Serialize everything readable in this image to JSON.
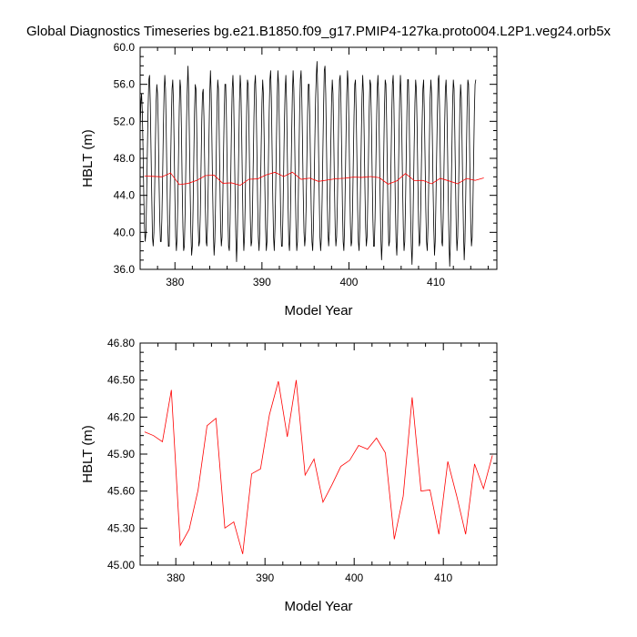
{
  "title": "Global Diagnostics Timeseries bg.e21.B1850.f09_g17.PMIP4-127ka.proto004.L2P1.veg24.orb5x",
  "chart_data": [
    {
      "type": "line",
      "title": "Global Diagnostics Timeseries bg.e21.B1850.f09_g17.PMIP4-127ka.proto004.L2P1.veg24.orb5x",
      "xlabel": "Model Year",
      "ylabel": "HBLT (m)",
      "xlim": [
        376,
        417
      ],
      "ylim": [
        36.0,
        60.0
      ],
      "xticks": [
        380,
        390,
        400,
        410
      ],
      "xtick_labels": [
        "380",
        "390",
        "400",
        "410"
      ],
      "yticks": [
        36,
        40,
        44,
        48,
        52,
        56,
        60
      ],
      "ytick_labels": [
        "36.0",
        "40.0",
        "44.0",
        "48.0",
        "52.0",
        "56.0",
        "60.0"
      ],
      "grid": false,
      "series": [
        {
          "color": "#000000",
          "x_start": 376.0,
          "x_step": 0.08333,
          "values": [
            51.0,
            54.0,
            55.0,
            53.0,
            49.0,
            44.0,
            40.5,
            39.0,
            40.0,
            44.0,
            49.0,
            53.5,
            56.5,
            57.0,
            54.0,
            49.0,
            44.0,
            39.5,
            38.5,
            40.0,
            44.5,
            49.5,
            54.0,
            56.0,
            55.0,
            51.5,
            46.0,
            41.5,
            39.0,
            39.0,
            41.5,
            46.0,
            51.0,
            55.0,
            57.0,
            55.5,
            51.0,
            45.5,
            41.0,
            38.5,
            38.5,
            42.0,
            47.0,
            52.0,
            55.5,
            56.5,
            54.0,
            49.0,
            43.5,
            39.5,
            38.0,
            39.5,
            43.5,
            48.5,
            53.5,
            56.5,
            55.5,
            51.0,
            45.0,
            40.5,
            38.0,
            38.5,
            42.0,
            47.0,
            52.0,
            55.5,
            58.0,
            55.0,
            50.0,
            44.5,
            40.0,
            37.5,
            38.5,
            42.5,
            48.0,
            53.0,
            56.0,
            55.5,
            51.5,
            46.0,
            41.0,
            38.5,
            39.0,
            42.0,
            47.0,
            52.0,
            55.0,
            55.5,
            52.5,
            47.5,
            42.5,
            39.0,
            38.5,
            41.0,
            45.5,
            50.5,
            55.0,
            57.5,
            55.0,
            50.0,
            44.5,
            40.0,
            37.5,
            39.0,
            43.0,
            48.5,
            53.5,
            56.5,
            55.5,
            51.0,
            45.5,
            40.5,
            38.5,
            39.5,
            43.5,
            48.5,
            53.0,
            56.0,
            56.0,
            52.5,
            47.0,
            42.0,
            38.5,
            38.0,
            41.0,
            46.0,
            51.5,
            55.5,
            57.0,
            54.5,
            49.5,
            44.0,
            39.5,
            36.8,
            39.5,
            44.0,
            49.0,
            54.0,
            57.0,
            55.5,
            51.0,
            45.5,
            40.5,
            38.0,
            39.5,
            43.5,
            48.5,
            53.5,
            56.5,
            56.0,
            52.0,
            46.5,
            41.5,
            38.5,
            39.0,
            42.5,
            47.5,
            52.5,
            56.0,
            57.0,
            54.0,
            49.0,
            43.5,
            39.5,
            38.0,
            40.0,
            44.5,
            49.5,
            54.0,
            56.5,
            55.0,
            50.5,
            45.0,
            40.5,
            38.0,
            39.0,
            43.0,
            48.0,
            53.0,
            56.5,
            57.5,
            54.5,
            49.0,
            43.5,
            39.5,
            38.0,
            40.5,
            45.0,
            50.0,
            54.5,
            57.5,
            56.0,
            51.5,
            46.0,
            41.0,
            38.5,
            38.5,
            42.0,
            47.0,
            52.0,
            55.5,
            57.0,
            54.0,
            48.5,
            43.0,
            39.0,
            38.0,
            40.5,
            45.5,
            50.5,
            55.0,
            57.5,
            55.5,
            51.0,
            45.0,
            40.5,
            38.0,
            39.0,
            43.0,
            48.0,
            53.0,
            56.5,
            57.5,
            54.5,
            49.5,
            44.0,
            40.0,
            38.5,
            39.5,
            43.0,
            48.0,
            53.0,
            56.0,
            56.0,
            52.5,
            47.5,
            42.5,
            39.0,
            38.0,
            40.5,
            45.0,
            50.0,
            54.5,
            57.0,
            58.5,
            55.0,
            49.5,
            44.0,
            39.5,
            38.0,
            39.5,
            43.5,
            48.5,
            53.5,
            57.5,
            58.0,
            55.0,
            49.5,
            44.0,
            40.0,
            38.5,
            40.0,
            44.5,
            49.5,
            54.0,
            56.5,
            55.0,
            50.5,
            45.0,
            40.5,
            38.5,
            39.5,
            43.0,
            48.0,
            53.0,
            56.5,
            57.0,
            54.0,
            48.5,
            43.0,
            39.0,
            38.0,
            40.5,
            45.5,
            50.5,
            55.0,
            57.5,
            56.0,
            51.5,
            46.0,
            41.0,
            38.5,
            39.0,
            42.5,
            47.5,
            52.5,
            56.0,
            56.5,
            53.0,
            48.0,
            42.5,
            39.0,
            38.0,
            40.5,
            45.0,
            50.0,
            54.5,
            57.0,
            55.0,
            50.5,
            45.0,
            40.5,
            38.5,
            39.5,
            43.5,
            48.5,
            53.5,
            56.5,
            56.0,
            52.0,
            46.5,
            41.5,
            38.5,
            38.5,
            41.5,
            46.5,
            51.5,
            55.5,
            57.0,
            54.5,
            49.5,
            44.0,
            39.5,
            37.0,
            39.0,
            43.5,
            48.5,
            53.5,
            56.5,
            56.0,
            52.0,
            46.5,
            41.5,
            38.5,
            39.0,
            42.5,
            47.5,
            52.5,
            56.0,
            57.0,
            54.0,
            48.5,
            43.0,
            39.0,
            37.5,
            40.0,
            45.0,
            50.0,
            54.5,
            57.0,
            55.0,
            50.5,
            45.0,
            40.5,
            38.0,
            39.0,
            43.0,
            48.0,
            53.0,
            56.5,
            56.5,
            53.0,
            47.5,
            42.0,
            38.5,
            36.5,
            39.5,
            44.5,
            49.5,
            54.0,
            56.5,
            55.5,
            51.5,
            46.0,
            41.0,
            38.5,
            39.0,
            42.5,
            47.5,
            52.0,
            55.5,
            56.5,
            53.0,
            48.0,
            42.5,
            39.0,
            38.0,
            40.5,
            45.0,
            50.0,
            54.5,
            56.5,
            55.0,
            50.5,
            45.0,
            40.5,
            37.5,
            39.0,
            43.5,
            48.5,
            53.0,
            56.5,
            57.0,
            53.5,
            48.0,
            42.5,
            39.0,
            38.5,
            41.5,
            46.5,
            51.5,
            55.5,
            56.5,
            54.0,
            49.0,
            43.5,
            39.0,
            36.3,
            39.0,
            44.0,
            49.0,
            54.0,
            56.5,
            55.5,
            51.0,
            45.5,
            40.5,
            38.0,
            39.5,
            43.5,
            48.5,
            53.5,
            56.0,
            54.5,
            50.0,
            44.5,
            40.0,
            37.0,
            39.0,
            43.5,
            48.5,
            53.5,
            56.5,
            56.0,
            51.5,
            46.0,
            41.0,
            38.5,
            39.5,
            43.0,
            48.0,
            53.0,
            56.0,
            56.5
          ]
        },
        {
          "color": "#ff0000",
          "x_start": 376.5,
          "x_step": 1,
          "values": [
            46.08,
            46.05,
            46.0,
            46.42,
            45.16,
            45.29,
            45.61,
            46.13,
            46.19,
            45.3,
            45.35,
            45.09,
            45.74,
            45.78,
            46.22,
            46.49,
            46.04,
            46.5,
            45.73,
            45.86,
            45.51,
            45.65,
            45.8,
            45.85,
            45.97,
            45.94,
            46.03,
            45.91,
            45.21,
            45.56,
            46.36,
            45.6,
            45.61,
            45.25,
            45.84,
            45.56,
            45.25,
            45.82,
            45.62,
            45.89
          ]
        }
      ]
    },
    {
      "type": "line",
      "xlabel": "Model Year",
      "ylabel": "HBLT (m)",
      "xlim": [
        376,
        416
      ],
      "ylim": [
        45.0,
        46.8
      ],
      "xticks": [
        380,
        390,
        400,
        410
      ],
      "xtick_labels": [
        "380",
        "390",
        "400",
        "410"
      ],
      "yticks": [
        45.0,
        45.3,
        45.6,
        45.9,
        46.2,
        46.5,
        46.8
      ],
      "ytick_labels": [
        "45.00",
        "45.30",
        "45.60",
        "45.90",
        "46.20",
        "46.50",
        "46.80"
      ],
      "grid": false,
      "series": [
        {
          "color": "#ff0000",
          "x_start": 376.5,
          "x_step": 1,
          "values": [
            46.08,
            46.05,
            46.0,
            46.42,
            45.16,
            45.29,
            45.61,
            46.13,
            46.19,
            45.3,
            45.35,
            45.09,
            45.74,
            45.78,
            46.22,
            46.49,
            46.04,
            46.5,
            45.73,
            45.86,
            45.51,
            45.65,
            45.8,
            45.85,
            45.97,
            45.94,
            46.03,
            45.91,
            45.21,
            45.56,
            46.36,
            45.6,
            45.61,
            45.25,
            45.84,
            45.56,
            45.25,
            45.82,
            45.62,
            45.89
          ]
        }
      ]
    }
  ]
}
